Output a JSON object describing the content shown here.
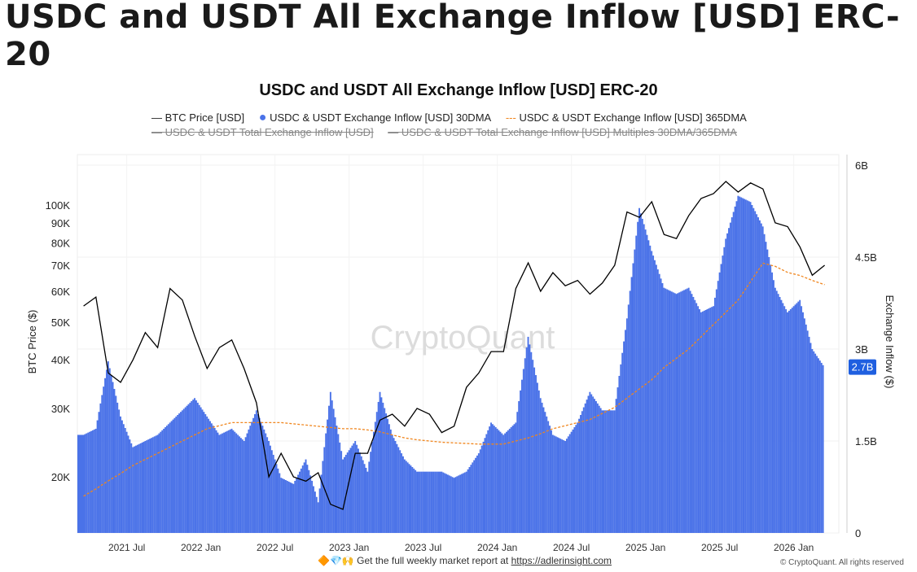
{
  "page_title": "USDC and USDT All Exchange Inflow [USD] ERC-20",
  "legend": [
    {
      "label": "BTC Price [USD]",
      "color": "#000000",
      "active": true
    },
    {
      "label": "USDC & USDT Exchange Inflow [USD] 30DMA",
      "color": "#4a72e8",
      "active": true
    },
    {
      "label": "USDC & USDT Exchange Inflow [USD] 365DMA",
      "color": "#f0861e",
      "active": true
    },
    {
      "label": "USDC & USDT Total Exchange Inflow [USD]",
      "active": false
    },
    {
      "label": "USDC & USDT Total Exchange Inflow [USD] Multiples 30DMA/365DMA",
      "active": false
    }
  ],
  "watermark": "CryptoQuant",
  "footer": {
    "emoji": "🔶💎🙌",
    "text": "Get the full weekly market report at ",
    "link": "https://adlerinsight.com",
    "copyright": "© CryptoQuant. All rights reserved"
  },
  "chart_data": {
    "type": "bar+line",
    "title": "USDC and USDT All Exchange Inflow [USD] ERC-20",
    "ylabel_left": "BTC Price ($)",
    "ylabel_right": "Exchange Inflow ($)",
    "left_scale": "log",
    "left_ticks": [
      "20K",
      "30K",
      "40K",
      "50K",
      "60K",
      "70K",
      "80K",
      "90K",
      "100K"
    ],
    "left_tick_values": [
      20000,
      30000,
      40000,
      50000,
      60000,
      70000,
      80000,
      90000,
      100000
    ],
    "right_ticks": [
      "0",
      "1.5B",
      "3B",
      "4.5B",
      "6B"
    ],
    "right_tick_values": [
      0,
      1.5,
      3,
      4.5,
      6
    ],
    "ylim_right": [
      0,
      6
    ],
    "x_ticks": [
      "2021 Jul",
      "2022 Jan",
      "2022 Jul",
      "2023 Jan",
      "2023 Jul",
      "2024 Jan",
      "2024 Jul",
      "2025 Jan",
      "2025 Jul",
      "2026 Jan"
    ],
    "last_value_label": "2.7B",
    "dates": [
      "2021-03",
      "2021-04",
      "2021-05",
      "2021-06",
      "2021-07",
      "2021-08",
      "2021-09",
      "2021-10",
      "2021-11",
      "2021-12",
      "2022-01",
      "2022-02",
      "2022-03",
      "2022-04",
      "2022-05",
      "2022-06",
      "2022-07",
      "2022-08",
      "2022-09",
      "2022-10",
      "2022-11",
      "2022-12",
      "2023-01",
      "2023-02",
      "2023-03",
      "2023-04",
      "2023-05",
      "2023-06",
      "2023-07",
      "2023-08",
      "2023-09",
      "2023-10",
      "2023-11",
      "2023-12",
      "2024-01",
      "2024-02",
      "2024-03",
      "2024-04",
      "2024-05",
      "2024-06",
      "2024-07",
      "2024-08",
      "2024-09",
      "2024-10",
      "2024-11",
      "2024-12",
      "2025-01",
      "2025-02",
      "2025-03",
      "2025-04",
      "2025-05",
      "2025-06",
      "2025-07",
      "2025-08",
      "2025-09",
      "2025-10",
      "2025-11",
      "2025-12",
      "2026-01",
      "2026-02",
      "2026-03"
    ],
    "series": [
      {
        "name": "BTC Price [USD]",
        "values": [
          55000,
          58000,
          37000,
          35000,
          40000,
          47000,
          43000,
          61000,
          57000,
          46000,
          38000,
          43000,
          45000,
          38000,
          31000,
          20000,
          23000,
          20000,
          19500,
          20500,
          17000,
          16500,
          23000,
          23000,
          28000,
          29000,
          27000,
          30000,
          29000,
          26000,
          27000,
          34000,
          37000,
          42000,
          42000,
          61000,
          71000,
          60000,
          67000,
          62000,
          64000,
          59000,
          63000,
          70000,
          96000,
          93000,
          102000,
          84000,
          82000,
          94000,
          104000,
          107000,
          115000,
          108000,
          114000,
          110000,
          90000,
          88000,
          78000,
          66000,
          70000
        ]
      },
      {
        "name": "USDC & USDT Exchange Inflow [USD] 30DMA",
        "values": [
          1.6,
          1.7,
          2.8,
          1.9,
          1.4,
          1.5,
          1.6,
          1.8,
          2.0,
          2.2,
          1.9,
          1.6,
          1.7,
          1.5,
          2.0,
          1.5,
          0.9,
          0.8,
          1.2,
          0.5,
          2.3,
          1.2,
          1.5,
          1.0,
          2.3,
          1.6,
          1.2,
          1.0,
          1.0,
          1.0,
          0.9,
          1.0,
          1.3,
          1.8,
          1.6,
          1.8,
          3.2,
          2.2,
          1.6,
          1.5,
          1.8,
          2.3,
          2.0,
          2.0,
          3.5,
          5.3,
          4.6,
          4.0,
          3.9,
          4.0,
          3.6,
          3.7,
          4.8,
          5.5,
          5.4,
          5.0,
          4.0,
          3.6,
          3.8,
          3.0,
          2.7
        ]
      },
      {
        "name": "USDC & USDT Exchange Inflow [USD] 365DMA",
        "values": [
          0.6,
          0.72,
          0.85,
          0.97,
          1.1,
          1.2,
          1.3,
          1.4,
          1.5,
          1.6,
          1.7,
          1.75,
          1.8,
          1.8,
          1.8,
          1.8,
          1.8,
          1.78,
          1.76,
          1.74,
          1.72,
          1.7,
          1.7,
          1.68,
          1.65,
          1.6,
          1.55,
          1.52,
          1.5,
          1.48,
          1.47,
          1.46,
          1.45,
          1.45,
          1.45,
          1.5,
          1.55,
          1.62,
          1.7,
          1.75,
          1.8,
          1.85,
          1.95,
          2.05,
          2.2,
          2.35,
          2.5,
          2.7,
          2.85,
          3.0,
          3.2,
          3.4,
          3.6,
          3.8,
          4.1,
          4.4,
          4.35,
          4.25,
          4.2,
          4.12,
          4.05
        ]
      }
    ]
  }
}
